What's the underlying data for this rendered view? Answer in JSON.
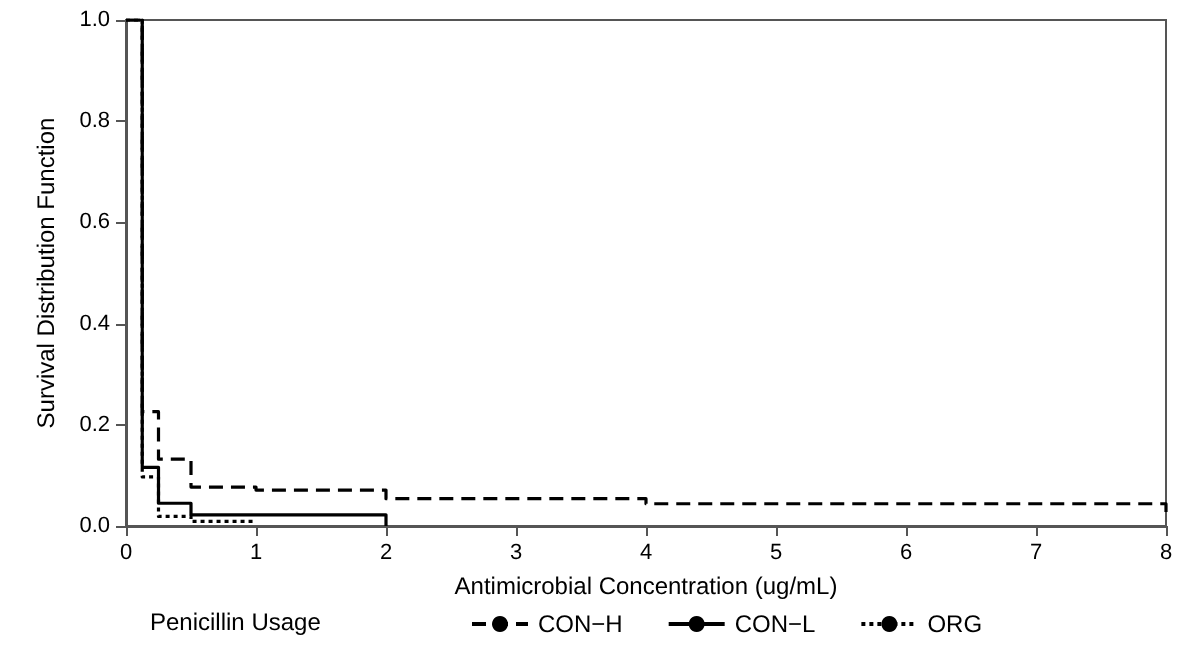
{
  "chart_data": {
    "type": "step",
    "xlabel": "Antimicrobial Concentration (ug/mL)",
    "ylabel": "Survival Distribution Function",
    "legend_title": "Penicillin Usage",
    "legend": "bottom",
    "grid": false,
    "marker": "none",
    "xlim": [
      0,
      8
    ],
    "xticks": [
      0,
      1,
      2,
      3,
      4,
      5,
      6,
      7,
      8
    ],
    "ylim": [
      0,
      1
    ],
    "yticks": [
      {
        "value": 0,
        "label": "0.0"
      },
      {
        "value": 0.2,
        "label": "0.2"
      },
      {
        "value": 0.4,
        "label": "0.4"
      },
      {
        "value": 0.6,
        "label": "0.6"
      },
      {
        "value": 0.8,
        "label": "0.8"
      },
      {
        "value": 1,
        "label": "1.0"
      }
    ],
    "series": [
      {
        "name": "CON−H",
        "color": "#000000",
        "line_style": "dashed",
        "x": [
          0,
          0.125,
          0.25,
          0.5,
          1,
          2,
          4,
          8
        ],
        "values": [
          1,
          0.226,
          0.132,
          0.077,
          0.071,
          0.054,
          0.044,
          0.02
        ]
      },
      {
        "name": "CON−L",
        "color": "#000000",
        "line_style": "solid",
        "x": [
          0,
          0.125,
          0.25,
          0.5,
          2
        ],
        "values": [
          1,
          0.116,
          0.045,
          0.022,
          0
        ]
      },
      {
        "name": "ORG",
        "color": "#000000",
        "line_style": "dotted",
        "x": [
          0,
          0.125,
          0.25,
          0.5,
          1
        ],
        "values": [
          1,
          0.097,
          0.019,
          0.009,
          0.009
        ]
      }
    ]
  }
}
